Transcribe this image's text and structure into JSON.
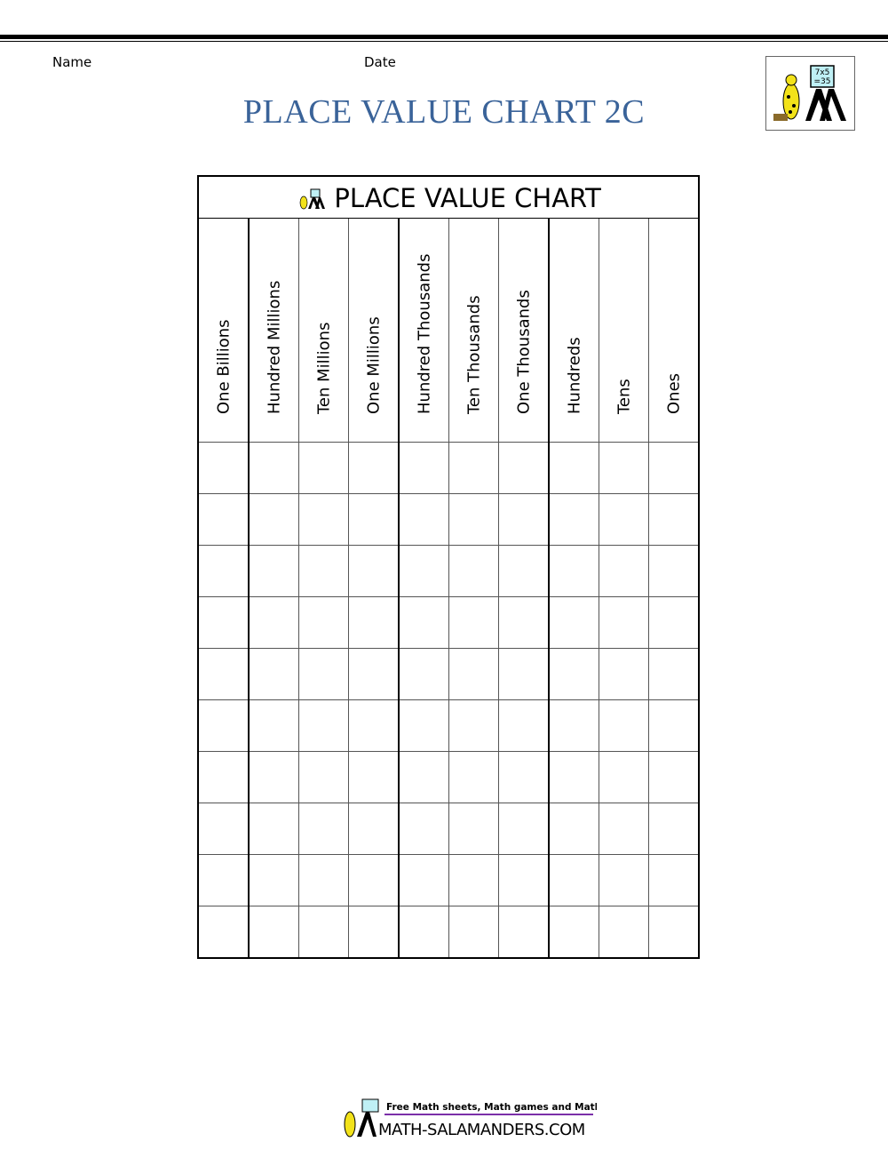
{
  "header": {
    "name_label": "Name",
    "date_label": "Date",
    "title": "PLACE VALUE CHART 2C",
    "logo_text": "7x5 =35"
  },
  "table": {
    "title": "PLACE VALUE CHART",
    "columns": [
      "One Billions",
      "Hundred Millions",
      "Ten Millions",
      "One Millions",
      "Hundred Thousands",
      "Ten Thousands",
      "One Thousands",
      "Hundreds",
      "Tens",
      "Ones"
    ],
    "blank_rows": 10
  },
  "footer": {
    "tagline": "Free Math sheets, Math games and Math help",
    "site": "MATH-SALAMANDERS.COM",
    "accent": "#7b2fa8"
  },
  "colors": {
    "title": "#3a6399"
  }
}
